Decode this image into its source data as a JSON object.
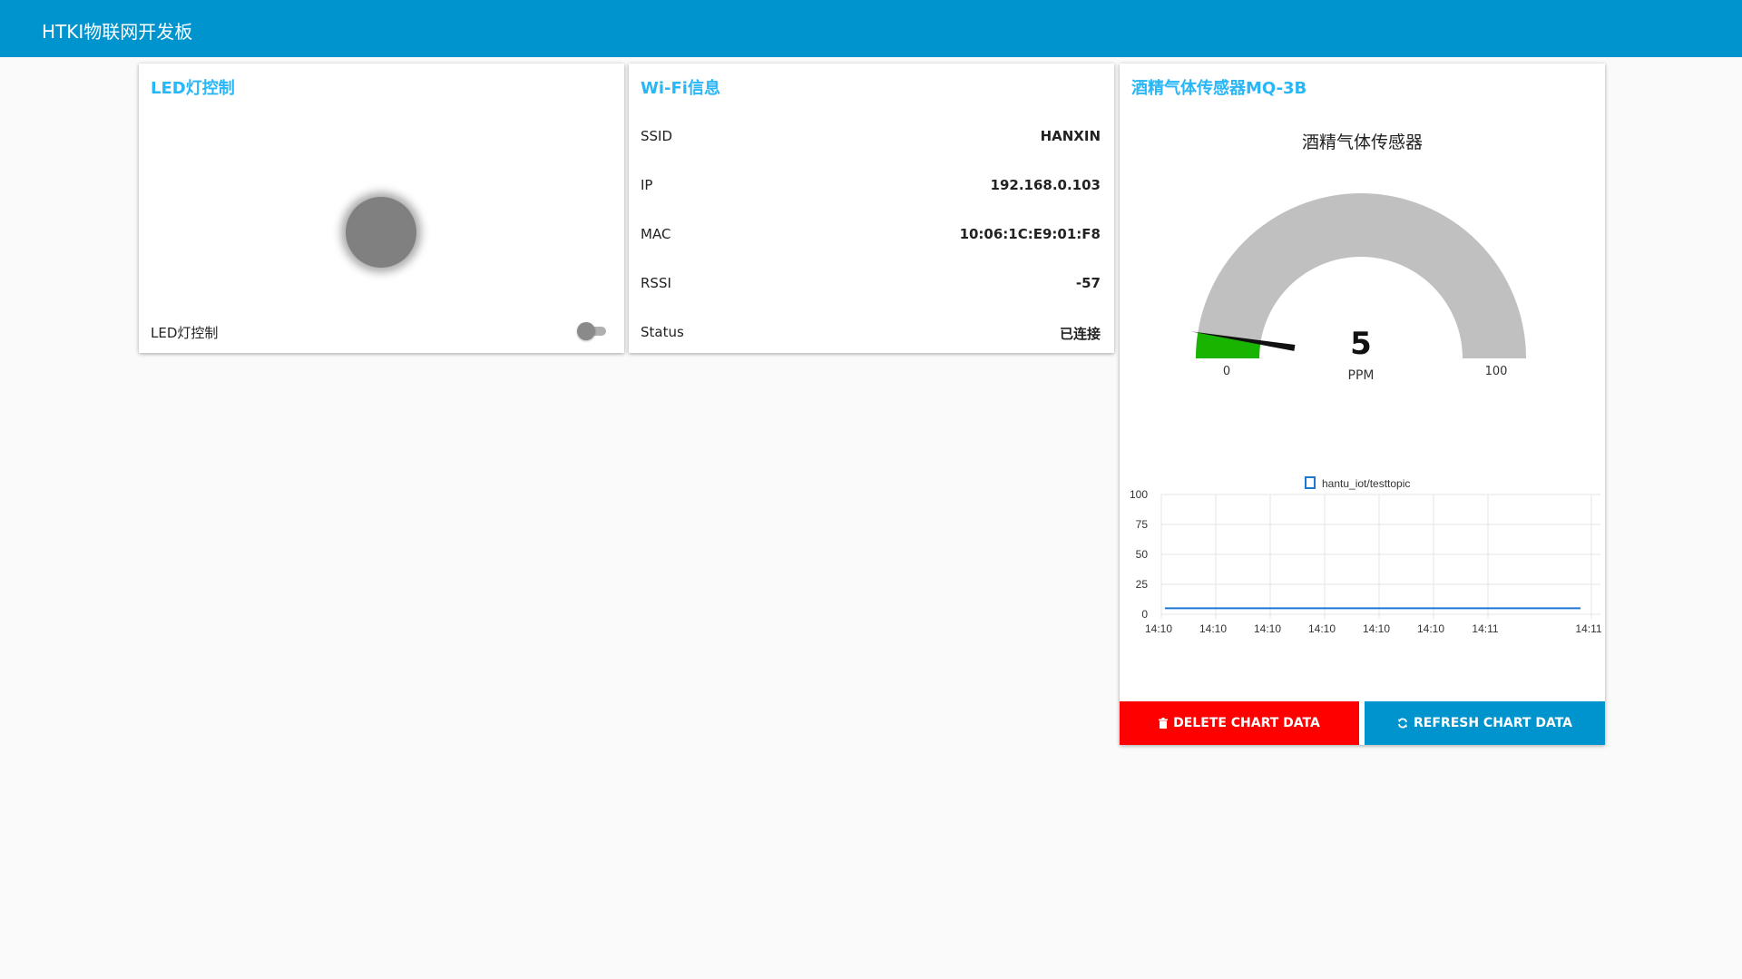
{
  "header": {
    "title": "HTKI物联网开发板"
  },
  "led_card": {
    "title": "LED灯控制",
    "switch_label": "LED灯控制",
    "led_on": false,
    "switch_on": false,
    "led_color_off": "#808080"
  },
  "wifi_card": {
    "title": "Wi-Fi信息",
    "rows": [
      {
        "label": "SSID",
        "value": "HANXIN"
      },
      {
        "label": "IP",
        "value": "192.168.0.103"
      },
      {
        "label": "MAC",
        "value": "10:06:1C:E9:01:F8"
      },
      {
        "label": "RSSI",
        "value": "-57"
      },
      {
        "label": "Status",
        "value": "已连接"
      }
    ]
  },
  "sensor_card": {
    "title": "酒精气体传感器MQ-3B",
    "gauge": {
      "heading": "酒精气体传感器",
      "value": 5,
      "value_label": "5",
      "unit": "PPM",
      "min": 0,
      "max": 100,
      "min_label": "0",
      "max_label": "100",
      "fill_color": "#19b400",
      "track_color": "#c0c0c0"
    },
    "delete_button": "DELETE CHART DATA",
    "refresh_button": "REFRESH CHART DATA",
    "delete_color": "#ff0000",
    "refresh_color": "#0094ce"
  },
  "chart_data": {
    "type": "line",
    "legend": "hantu_iot/testtopic",
    "legend_position": "top",
    "grid": true,
    "ylim": [
      0,
      100
    ],
    "y_ticks": [
      "100",
      "75",
      "50",
      "25",
      "0"
    ],
    "x_ticks": [
      "14:10",
      "14:10",
      "14:10",
      "14:10",
      "14:10",
      "14:10",
      "14:11",
      "14:11"
    ],
    "series": [
      {
        "name": "hantu_iot/testtopic",
        "color": "#1f77d4",
        "x": [
          "14:10",
          "14:11"
        ],
        "values": [
          5,
          5
        ]
      }
    ]
  }
}
